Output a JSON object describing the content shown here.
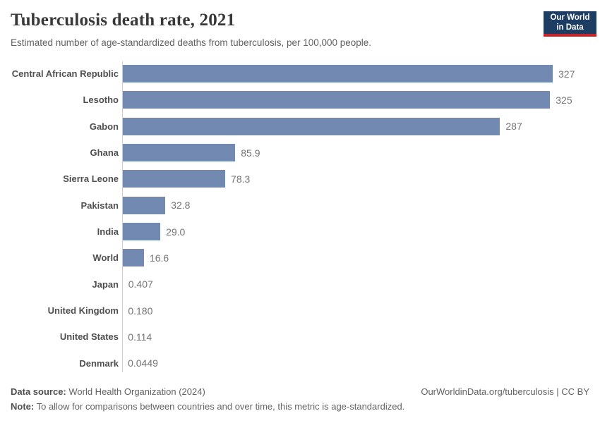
{
  "header": {
    "title": "Tuberculosis death rate, 2021",
    "subtitle": "Estimated number of age-standardized deaths from tuberculosis, per 100,000 people."
  },
  "logo": {
    "line1": "Our World",
    "line2": "in Data",
    "background_color": "#1d3d63",
    "accent_color": "#c1272d"
  },
  "chart_data": {
    "type": "bar",
    "orientation": "horizontal",
    "title": "Tuberculosis death rate, 2021",
    "xlabel": "",
    "ylabel": "",
    "xlim": [
      0,
      327
    ],
    "grid": false,
    "legend": false,
    "bar_color": "#7289b1",
    "axis_color": "#cdcdcd",
    "categories": [
      "Central African Republic",
      "Lesotho",
      "Gabon",
      "Ghana",
      "Sierra Leone",
      "Pakistan",
      "India",
      "World",
      "Japan",
      "United Kingdom",
      "United States",
      "Denmark"
    ],
    "values": [
      327,
      325,
      287,
      85.9,
      78.3,
      32.8,
      29.0,
      16.6,
      0.407,
      0.18,
      0.114,
      0.0449
    ],
    "value_labels": [
      "327",
      "325",
      "287",
      "85.9",
      "78.3",
      "32.8",
      "29.0",
      "16.6",
      "0.407",
      "0.180",
      "0.114",
      "0.0449"
    ]
  },
  "footer": {
    "datasource_label": "Data source:",
    "datasource_value": " World Health Organization (2024)",
    "note_label": "Note:",
    "note_value": " To allow for comparisons between countries and over time, this metric is age-standardized.",
    "link": "OurWorldinData.org/tuberculosis | CC BY"
  }
}
